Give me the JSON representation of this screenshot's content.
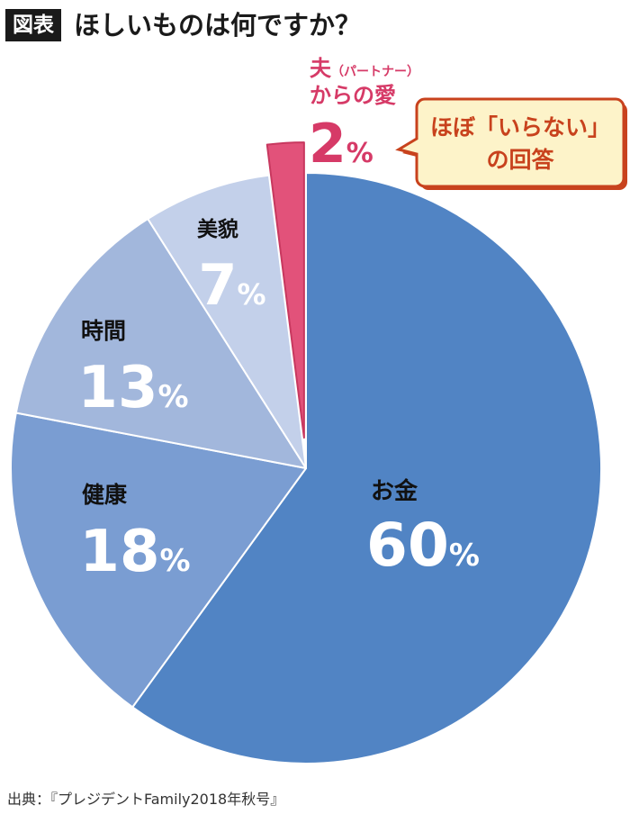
{
  "header": {
    "badge": "図表",
    "title": "ほしいものは何ですか？"
  },
  "chart_data": {
    "type": "pie",
    "categories": [
      "お金",
      "健康",
      "時間",
      "美貌",
      "夫（パートナー）からの愛"
    ],
    "values": [
      60,
      18,
      13,
      7,
      2
    ],
    "unit": "%",
    "highlight": "夫（パートナー）からの愛",
    "slice_colors": [
      "#5184c4",
      "#7a9dd2",
      "#a2b7dc",
      "#c3d0ea",
      "#e2527a"
    ],
    "slice_labels": [
      {
        "name": "お金",
        "value": "60",
        "unit": "%"
      },
      {
        "name": "健康",
        "value": "18",
        "unit": "%"
      },
      {
        "name": "時間",
        "value": "13",
        "unit": "%"
      },
      {
        "name": "美貌",
        "value": "7",
        "unit": "%"
      }
    ],
    "exploded_label": {
      "line1_main": "夫",
      "line1_sub": "（パートナー）",
      "line2": "からの愛",
      "value": "2",
      "unit": "%"
    },
    "callout": {
      "line1": "ほぼ「いらない」",
      "line2": "の回答",
      "fill": "#fdf3c9",
      "stroke": "#c8421d"
    }
  },
  "source": "出典：『プレジデントFamily2018年秋号』"
}
